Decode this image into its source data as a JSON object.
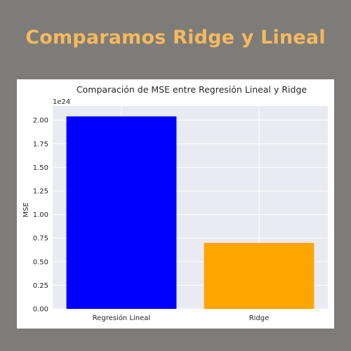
{
  "slide": {
    "title": "Comparamos Ridge y Lineal"
  },
  "colors": {
    "background": "#7d7c79",
    "title": "#f6b95e",
    "plot_background": "#eaeaf2",
    "grid": "#ffffff"
  },
  "chart_data": {
    "type": "bar",
    "title": "Comparación de MSE entre Regresión Lineal y Ridge",
    "xlabel": "",
    "ylabel": "MSE",
    "offset_text": "1e24",
    "categories": [
      "Regresión Lineal",
      "Ridge"
    ],
    "values": [
      2.04,
      0.7
    ],
    "bar_colors": [
      "#0000ff",
      "#ffa500"
    ],
    "ylim": [
      0,
      2.15
    ],
    "yticks": [
      0.0,
      0.25,
      0.5,
      0.75,
      1.0,
      1.25,
      1.5,
      1.75,
      2.0
    ],
    "ytick_labels": [
      "0.00",
      "0.25",
      "0.50",
      "0.75",
      "1.00",
      "1.25",
      "1.50",
      "1.75",
      "2.00"
    ],
    "grid": true
  }
}
